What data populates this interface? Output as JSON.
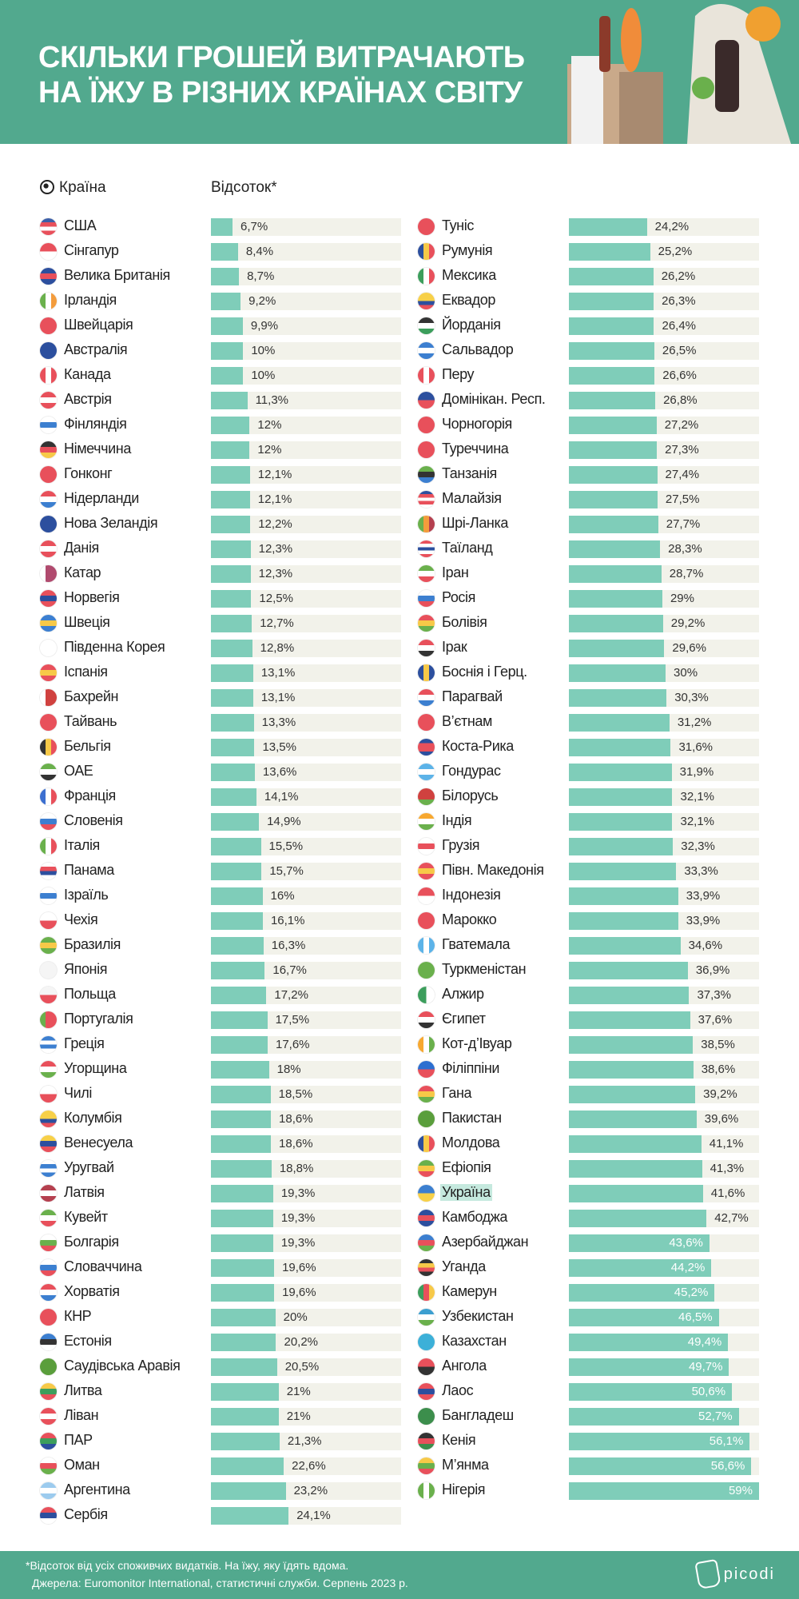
{
  "header": {
    "title_line1": "Скільки грошей витрачають",
    "title_line2": "на їжу в різних країнах світу"
  },
  "columns": {
    "country": "Країна",
    "percent": "Відсоток*"
  },
  "footer": {
    "note": "*Відсоток від усіх споживчих видатків. На їжу, яку їдять вдома.",
    "source": "Джерела: Euromonitor International, статистичні служби. Серпень 2023 р.",
    "logo": "picodi"
  },
  "colors": {
    "header_bg": "#52a98e",
    "bar": "#7fcdb9",
    "track": "#f2f2ea",
    "highlight": "#c5e9de"
  },
  "chart_data": {
    "type": "bar",
    "title": "Скільки грошей витрачають на їжу в різних країнах світу",
    "xlabel": "Країна",
    "ylabel": "Відсоток*",
    "ylim": [
      0,
      59
    ],
    "left": [
      {
        "name": "США",
        "label": "6,7%",
        "value": 6.7,
        "flag": [
          "#3c5fa8",
          "#e8505b",
          "#fff",
          "#e8505b"
        ]
      },
      {
        "name": "Сінгапур",
        "label": "8,4%",
        "value": 8.4,
        "flag": [
          "#e8505b",
          "#fff"
        ]
      },
      {
        "name": "Велика Британія",
        "label": "8,7%",
        "value": 8.7,
        "flag": [
          "#2c4f9e",
          "#e8505b",
          "#2c4f9e"
        ]
      },
      {
        "name": "Ірландія",
        "label": "9,2%",
        "value": 9.2,
        "flag": [
          "#6ab04c",
          "#fff",
          "#f39c3c"
        ],
        "v": true
      },
      {
        "name": "Швейцарія",
        "label": "9,9%",
        "value": 9.9,
        "flag": [
          "#e8505b"
        ]
      },
      {
        "name": "Австралія",
        "label": "10%",
        "value": 10,
        "flag": [
          "#2c4f9e"
        ]
      },
      {
        "name": "Канада",
        "label": "10%",
        "value": 10,
        "flag": [
          "#e8505b",
          "#fff",
          "#e8505b"
        ],
        "v": true
      },
      {
        "name": "Австрія",
        "label": "11,3%",
        "value": 11.3,
        "flag": [
          "#e8505b",
          "#fff",
          "#e8505b"
        ]
      },
      {
        "name": "Фінляндія",
        "label": "12%",
        "value": 12,
        "flag": [
          "#fff",
          "#3c7fd0",
          "#fff"
        ]
      },
      {
        "name": "Німеччина",
        "label": "12%",
        "value": 12,
        "flag": [
          "#333",
          "#e8505b",
          "#f7c948"
        ]
      },
      {
        "name": "Гонконг",
        "label": "12,1%",
        "value": 12.1,
        "flag": [
          "#e8505b"
        ]
      },
      {
        "name": "Нідерланди",
        "label": "12,1%",
        "value": 12.1,
        "flag": [
          "#e8505b",
          "#fff",
          "#3c7fd0"
        ]
      },
      {
        "name": "Нова Зеландія",
        "label": "12,2%",
        "value": 12.2,
        "flag": [
          "#2c4f9e"
        ]
      },
      {
        "name": "Данія",
        "label": "12,3%",
        "value": 12.3,
        "flag": [
          "#e8505b",
          "#fff",
          "#e8505b"
        ]
      },
      {
        "name": "Катар",
        "label": "12,3%",
        "value": 12.3,
        "flag": [
          "#fff",
          "#b04a6e",
          "#b04a6e"
        ],
        "v": true
      },
      {
        "name": "Норвегія",
        "label": "12,5%",
        "value": 12.5,
        "flag": [
          "#e8505b",
          "#2c4f9e",
          "#e8505b"
        ]
      },
      {
        "name": "Швеція",
        "label": "12,7%",
        "value": 12.7,
        "flag": [
          "#3c7fd0",
          "#f7c948",
          "#3c7fd0"
        ]
      },
      {
        "name": "Південна Корея",
        "label": "12,8%",
        "value": 12.8,
        "flag": [
          "#fff"
        ]
      },
      {
        "name": "Іспанія",
        "label": "13,1%",
        "value": 13.1,
        "flag": [
          "#e8505b",
          "#f7c948",
          "#e8505b"
        ]
      },
      {
        "name": "Бахрейн",
        "label": "13,1%",
        "value": 13.1,
        "flag": [
          "#fff",
          "#d0413f",
          "#d0413f"
        ],
        "v": true
      },
      {
        "name": "Тайвань",
        "label": "13,3%",
        "value": 13.3,
        "flag": [
          "#e8505b"
        ]
      },
      {
        "name": "Бельгія",
        "label": "13,5%",
        "value": 13.5,
        "flag": [
          "#333",
          "#f7c948",
          "#e8505b"
        ],
        "v": true
      },
      {
        "name": "ОАЕ",
        "label": "13,6%",
        "value": 13.6,
        "flag": [
          "#6ab04c",
          "#fff",
          "#333"
        ]
      },
      {
        "name": "Франція",
        "label": "14,1%",
        "value": 14.1,
        "flag": [
          "#3c6fd0",
          "#fff",
          "#e8505b"
        ],
        "v": true
      },
      {
        "name": "Словенія",
        "label": "14,9%",
        "value": 14.9,
        "flag": [
          "#fff",
          "#3c7fd0",
          "#e8505b"
        ]
      },
      {
        "name": "Італія",
        "label": "15,5%",
        "value": 15.5,
        "flag": [
          "#6ab04c",
          "#fff",
          "#e8505b"
        ],
        "v": true
      },
      {
        "name": "Панама",
        "label": "15,7%",
        "value": 15.7,
        "flag": [
          "#fff",
          "#e8505b",
          "#2c4f9e",
          "#fff"
        ]
      },
      {
        "name": "Ізраїль",
        "label": "16%",
        "value": 16,
        "flag": [
          "#fff",
          "#3c7fd0",
          "#fff"
        ]
      },
      {
        "name": "Чехія",
        "label": "16,1%",
        "value": 16.1,
        "flag": [
          "#fff",
          "#e8505b"
        ]
      },
      {
        "name": "Бразилія",
        "label": "16,3%",
        "value": 16.3,
        "flag": [
          "#6ab04c",
          "#f7c948",
          "#6ab04c"
        ]
      },
      {
        "name": "Японія",
        "label": "16,7%",
        "value": 16.7,
        "flag": [
          "#f5f5f5"
        ]
      },
      {
        "name": "Польща",
        "label": "17,2%",
        "value": 17.2,
        "flag": [
          "#f5f5f5",
          "#e8505b"
        ]
      },
      {
        "name": "Португалія",
        "label": "17,5%",
        "value": 17.5,
        "flag": [
          "#6ab04c",
          "#e8505b",
          "#e8505b"
        ],
        "v": true
      },
      {
        "name": "Греція",
        "label": "17,6%",
        "value": 17.6,
        "flag": [
          "#3c7fd0",
          "#fff",
          "#3c7fd0",
          "#fff"
        ]
      },
      {
        "name": "Угорщина",
        "label": "18%",
        "value": 18,
        "flag": [
          "#e8505b",
          "#fff",
          "#6ab04c"
        ]
      },
      {
        "name": "Чилі",
        "label": "18,5%",
        "value": 18.5,
        "flag": [
          "#fff",
          "#e8505b"
        ]
      },
      {
        "name": "Колумбія",
        "label": "18,6%",
        "value": 18.6,
        "flag": [
          "#f7d048",
          "#f7d048",
          "#2c4f9e",
          "#e8505b"
        ]
      },
      {
        "name": "Венесуела",
        "label": "18,6%",
        "value": 18.6,
        "flag": [
          "#f7d048",
          "#2c4f9e",
          "#e8505b"
        ]
      },
      {
        "name": "Уругвай",
        "label": "18,8%",
        "value": 18.8,
        "flag": [
          "#fff",
          "#3c7fd0",
          "#fff",
          "#3c7fd0"
        ]
      },
      {
        "name": "Латвія",
        "label": "19,3%",
        "value": 19.3,
        "flag": [
          "#b5404f",
          "#fff",
          "#b5404f"
        ]
      },
      {
        "name": "Кувейт",
        "label": "19,3%",
        "value": 19.3,
        "flag": [
          "#6ab04c",
          "#fff",
          "#e8505b"
        ]
      },
      {
        "name": "Болгарія",
        "label": "19,3%",
        "value": 19.3,
        "flag": [
          "#fff",
          "#6ab04c",
          "#e8505b"
        ]
      },
      {
        "name": "Словаччина",
        "label": "19,6%",
        "value": 19.6,
        "flag": [
          "#fff",
          "#3c7fd0",
          "#e8505b"
        ]
      },
      {
        "name": "Хорватія",
        "label": "19,6%",
        "value": 19.6,
        "flag": [
          "#e8505b",
          "#fff",
          "#3c7fd0"
        ]
      },
      {
        "name": "КНР",
        "label": "20%",
        "value": 20,
        "flag": [
          "#e8505b"
        ]
      },
      {
        "name": "Естонія",
        "label": "20,2%",
        "value": 20.2,
        "flag": [
          "#3c7fd0",
          "#333",
          "#fff"
        ]
      },
      {
        "name": "Саудівська Аравія",
        "label": "20,5%",
        "value": 20.5,
        "flag": [
          "#5a9e3c"
        ]
      },
      {
        "name": "Литва",
        "label": "21%",
        "value": 21,
        "flag": [
          "#f7c948",
          "#3c9e5c",
          "#e8505b"
        ]
      },
      {
        "name": "Ліван",
        "label": "21%",
        "value": 21,
        "flag": [
          "#e8505b",
          "#fff",
          "#e8505b"
        ]
      },
      {
        "name": "ПАР",
        "label": "21,3%",
        "value": 21.3,
        "flag": [
          "#e8505b",
          "#3c9e5c",
          "#2c4f9e"
        ]
      },
      {
        "name": "Оман",
        "label": "22,6%",
        "value": 22.6,
        "flag": [
          "#fff",
          "#e8505b",
          "#6ab04c"
        ]
      },
      {
        "name": "Аргентина",
        "label": "23,2%",
        "value": 23.2,
        "flag": [
          "#9ccbee",
          "#fff",
          "#9ccbee"
        ]
      },
      {
        "name": "Сербія",
        "label": "24,1%",
        "value": 24.1,
        "flag": [
          "#e8505b",
          "#2c4f9e",
          "#fff"
        ]
      }
    ],
    "right": [
      {
        "name": "Туніс",
        "label": "24,2%",
        "value": 24.2,
        "flag": [
          "#e8505b"
        ]
      },
      {
        "name": "Румунія",
        "label": "25,2%",
        "value": 25.2,
        "flag": [
          "#2c4f9e",
          "#f7c948",
          "#e8505b"
        ],
        "v": true
      },
      {
        "name": "Мексика",
        "label": "26,2%",
        "value": 26.2,
        "flag": [
          "#3c9e5c",
          "#fff",
          "#e8505b"
        ],
        "v": true
      },
      {
        "name": "Еквадор",
        "label": "26,3%",
        "value": 26.3,
        "flag": [
          "#f7d048",
          "#f7d048",
          "#2c4f9e",
          "#e8505b"
        ]
      },
      {
        "name": "Йорданія",
        "label": "26,4%",
        "value": 26.4,
        "flag": [
          "#333",
          "#fff",
          "#3c9e5c"
        ]
      },
      {
        "name": "Сальвадор",
        "label": "26,5%",
        "value": 26.5,
        "flag": [
          "#3c7fd0",
          "#fff",
          "#3c7fd0"
        ]
      },
      {
        "name": "Перу",
        "label": "26,6%",
        "value": 26.6,
        "flag": [
          "#e8505b",
          "#fff",
          "#e8505b"
        ],
        "v": true
      },
      {
        "name": "Домінікан. Респ.",
        "label": "26,8%",
        "value": 26.8,
        "flag": [
          "#2c4f9e",
          "#e8505b"
        ]
      },
      {
        "name": "Чорногорія",
        "label": "27,2%",
        "value": 27.2,
        "flag": [
          "#e8505b"
        ]
      },
      {
        "name": "Туреччина",
        "label": "27,3%",
        "value": 27.3,
        "flag": [
          "#e8505b"
        ]
      },
      {
        "name": "Танзанія",
        "label": "27,4%",
        "value": 27.4,
        "flag": [
          "#6ab04c",
          "#333",
          "#3c7fd0"
        ]
      },
      {
        "name": "Малайзія",
        "label": "27,5%",
        "value": 27.5,
        "flag": [
          "#2c4f9e",
          "#e8505b",
          "#fff",
          "#e8505b",
          "#fff"
        ]
      },
      {
        "name": "Шрі-Ланка",
        "label": "27,7%",
        "value": 27.7,
        "flag": [
          "#6ab04c",
          "#f39c3c",
          "#b5404f"
        ],
        "v": true
      },
      {
        "name": "Таїланд",
        "label": "28,3%",
        "value": 28.3,
        "flag": [
          "#e8505b",
          "#fff",
          "#2c4f9e",
          "#fff",
          "#e8505b"
        ]
      },
      {
        "name": "Іран",
        "label": "28,7%",
        "value": 28.7,
        "flag": [
          "#6ab04c",
          "#fff",
          "#e8505b"
        ]
      },
      {
        "name": "Росія",
        "label": "29%",
        "value": 29,
        "flag": [
          "#fff",
          "#3c7fd0",
          "#e8505b"
        ]
      },
      {
        "name": "Болівія",
        "label": "29,2%",
        "value": 29.2,
        "flag": [
          "#e8505b",
          "#f7c948",
          "#6ab04c"
        ]
      },
      {
        "name": "Ірак",
        "label": "29,6%",
        "value": 29.6,
        "flag": [
          "#e8505b",
          "#fff",
          "#333"
        ]
      },
      {
        "name": "Боснія і Герц.",
        "label": "30%",
        "value": 30,
        "flag": [
          "#2c4f9e",
          "#f7c948",
          "#2c4f9e"
        ],
        "v": true
      },
      {
        "name": "Парагвай",
        "label": "30,3%",
        "value": 30.3,
        "flag": [
          "#e8505b",
          "#fff",
          "#3c7fd0"
        ]
      },
      {
        "name": "В’єтнам",
        "label": "31,2%",
        "value": 31.2,
        "flag": [
          "#e8505b"
        ]
      },
      {
        "name": "Коста-Рика",
        "label": "31,6%",
        "value": 31.6,
        "flag": [
          "#2c4f9e",
          "#e8505b",
          "#e8505b",
          "#2c4f9e"
        ]
      },
      {
        "name": "Гондурас",
        "label": "31,9%",
        "value": 31.9,
        "flag": [
          "#5cb3e8",
          "#fff",
          "#5cb3e8"
        ]
      },
      {
        "name": "Білорусь",
        "label": "32,1%",
        "value": 32.1,
        "flag": [
          "#d0413f",
          "#d0413f",
          "#6ab04c"
        ]
      },
      {
        "name": "Індія",
        "label": "32,1%",
        "value": 32.1,
        "flag": [
          "#f7a830",
          "#fff",
          "#6ab04c"
        ]
      },
      {
        "name": "Грузія",
        "label": "32,3%",
        "value": 32.3,
        "flag": [
          "#fff",
          "#e8505b",
          "#fff"
        ]
      },
      {
        "name": "Півн. Македонія",
        "label": "33,3%",
        "value": 33.3,
        "flag": [
          "#e8505b",
          "#f7c948",
          "#e8505b"
        ]
      },
      {
        "name": "Індонезія",
        "label": "33,9%",
        "value": 33.9,
        "flag": [
          "#e8505b",
          "#fff"
        ]
      },
      {
        "name": "Марокко",
        "label": "33,9%",
        "value": 33.9,
        "flag": [
          "#e8505b"
        ]
      },
      {
        "name": "Гватемала",
        "label": "34,6%",
        "value": 34.6,
        "flag": [
          "#5cb3e8",
          "#fff",
          "#5cb3e8"
        ],
        "v": true
      },
      {
        "name": "Туркменістан",
        "label": "36,9%",
        "value": 36.9,
        "flag": [
          "#6ab04c"
        ]
      },
      {
        "name": "Алжир",
        "label": "37,3%",
        "value": 37.3,
        "flag": [
          "#3c9e5c",
          "#fff"
        ],
        "v": true
      },
      {
        "name": "Єгипет",
        "label": "37,6%",
        "value": 37.6,
        "flag": [
          "#e8505b",
          "#fff",
          "#333"
        ]
      },
      {
        "name": "Кот-д’Івуар",
        "label": "38,5%",
        "value": 38.5,
        "flag": [
          "#f7a830",
          "#fff",
          "#6ab04c"
        ],
        "v": true
      },
      {
        "name": "Філіппіни",
        "label": "38,6%",
        "value": 38.6,
        "flag": [
          "#2c6fd0",
          "#e8505b"
        ]
      },
      {
        "name": "Гана",
        "label": "39,2%",
        "value": 39.2,
        "flag": [
          "#e8505b",
          "#f7c948",
          "#6ab04c"
        ]
      },
      {
        "name": "Пакистан",
        "label": "39,6%",
        "value": 39.6,
        "flag": [
          "#5a9e3c"
        ]
      },
      {
        "name": "Молдова",
        "label": "41,1%",
        "value": 41.1,
        "flag": [
          "#2c4f9e",
          "#f7c948",
          "#e8505b"
        ],
        "v": true
      },
      {
        "name": "Ефіопія",
        "label": "41,3%",
        "value": 41.3,
        "flag": [
          "#6ab04c",
          "#f7c948",
          "#e8505b"
        ]
      },
      {
        "name": "Україна",
        "label": "41,6%",
        "value": 41.6,
        "flag": [
          "#3c7fd0",
          "#f7d048"
        ],
        "highlight": true
      },
      {
        "name": "Камбоджа",
        "label": "42,7%",
        "value": 42.7,
        "flag": [
          "#2c4f9e",
          "#e8505b",
          "#2c4f9e"
        ]
      },
      {
        "name": "Азербайджан",
        "label": "43,6%",
        "value": 43.6,
        "flag": [
          "#3c7fd0",
          "#e8505b",
          "#6ab04c"
        ]
      },
      {
        "name": "Уганда",
        "label": "44,2%",
        "value": 44.2,
        "flag": [
          "#333",
          "#f7c948",
          "#e8505b",
          "#333"
        ]
      },
      {
        "name": "Камерун",
        "label": "45,2%",
        "value": 45.2,
        "flag": [
          "#3c9e5c",
          "#e8505b",
          "#f7c948"
        ],
        "v": true
      },
      {
        "name": "Узбекистан",
        "label": "46,5%",
        "value": 46.5,
        "flag": [
          "#3c9fd0",
          "#fff",
          "#6ab04c"
        ]
      },
      {
        "name": "Казахстан",
        "label": "49,4%",
        "value": 49.4,
        "flag": [
          "#3cb0d8"
        ]
      },
      {
        "name": "Ангола",
        "label": "49,7%",
        "value": 49.7,
        "flag": [
          "#e8505b",
          "#333"
        ]
      },
      {
        "name": "Лаос",
        "label": "50,6%",
        "value": 50.6,
        "flag": [
          "#e8505b",
          "#2c4f9e",
          "#e8505b"
        ]
      },
      {
        "name": "Бангладеш",
        "label": "52,7%",
        "value": 52.7,
        "flag": [
          "#3c8e4c"
        ]
      },
      {
        "name": "Кенія",
        "label": "56,1%",
        "value": 56.1,
        "flag": [
          "#333",
          "#e8505b",
          "#3c8e4c"
        ]
      },
      {
        "name": "М’янма",
        "label": "56,6%",
        "value": 56.6,
        "flag": [
          "#f7c948",
          "#6ab04c",
          "#e8505b"
        ]
      },
      {
        "name": "Нігерія",
        "label": "59%",
        "value": 59,
        "flag": [
          "#6ab04c",
          "#fff",
          "#6ab04c"
        ],
        "v": true
      }
    ]
  }
}
